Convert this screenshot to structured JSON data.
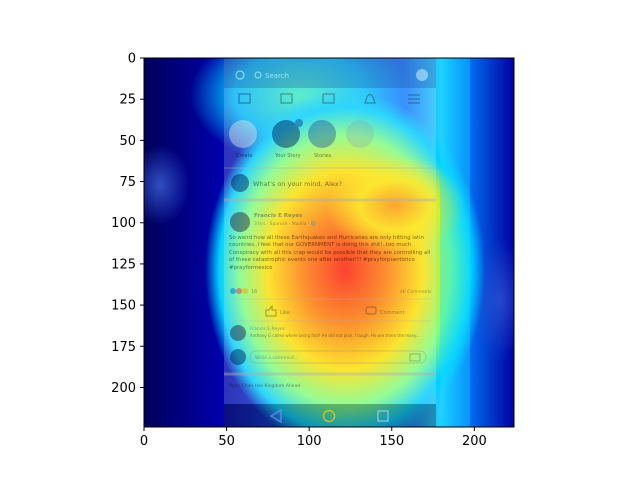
{
  "chart_data": {
    "type": "heatmap",
    "title": "",
    "xlabel": "",
    "ylabel": "",
    "xlim": [
      0,
      224
    ],
    "ylim": [
      224,
      0
    ],
    "xticks": [
      0,
      50,
      100,
      150,
      200
    ],
    "yticks": [
      0,
      25,
      50,
      75,
      100,
      125,
      150,
      175,
      200
    ],
    "colormap": "jet",
    "hotspot_center": [
      112,
      130
    ],
    "overlay": "Facebook mobile feed screenshot",
    "grid": false
  },
  "screenshot": {
    "search_placeholder": "Search",
    "stories": [
      "Create",
      "Your Story",
      "Stories"
    ],
    "composer_text": "What's on your mind, Alex?",
    "post_author": "Francis E Reyes",
    "post_meta": "3 hrs · Spanish · Manila · 🌐",
    "post_body": "So weird how all these Earthquakes and Hurricanes are only hitting latin countries..I feel that our GOVERNMENT is doing this shit!..too much Conspiracy with all this crap would be possible that they are controlling all of these catastrophic events one after another!!! #prayforpuertorico #prayformexico",
    "reaction_count": "16",
    "comment_count": "46 Comments",
    "like_label": "Like",
    "comment_label": "Comment",
    "reply_author": "Francis E Reyes",
    "reply_text": "Anthony G calms where being fool! He did not plan, I laugh. He are there the many...",
    "reply_placeholder": "Write a comment...",
    "next_post_header": "Ryan Chan Has Kingdom Ahead",
    "colors": {
      "jet_low": "#00007f",
      "jet_high": "#ff0000",
      "facebook_blue": "#3b5998"
    }
  }
}
